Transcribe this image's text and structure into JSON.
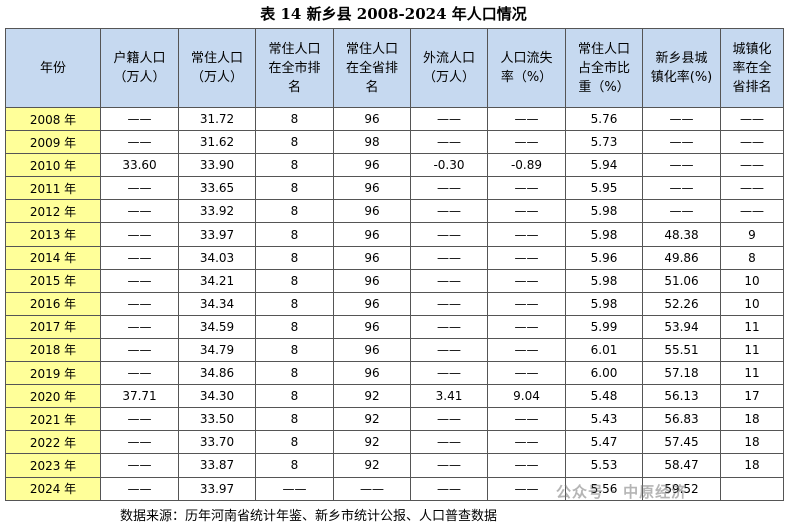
{
  "title": "表 14 新乡县 2008-2024 年人口情况",
  "table": {
    "header": [
      [
        "年份"
      ],
      [
        "户籍人口",
        "（万人）"
      ],
      [
        "常住人口",
        "（万人）"
      ],
      [
        "常住人口",
        "在全市排",
        "名"
      ],
      [
        "常住人口",
        "在全省排",
        "名"
      ],
      [
        "外流人口",
        "（万人）"
      ],
      [
        "人口流失",
        "率（%）"
      ],
      [
        "常住人口",
        "占全市比",
        "重（%）"
      ],
      [
        "新乡县城",
        "镇化率(%)"
      ],
      [
        "城镇化",
        "率在全",
        "省排名"
      ]
    ],
    "rows": [
      [
        "2008 年",
        "——",
        "31.72",
        "8",
        "96",
        "——",
        "——",
        "5.76",
        "——",
        "——"
      ],
      [
        "2009 年",
        "——",
        "31.62",
        "8",
        "98",
        "——",
        "——",
        "5.73",
        "——",
        "——"
      ],
      [
        "2010 年",
        "33.60",
        "33.90",
        "8",
        "96",
        "-0.30",
        "-0.89",
        "5.94",
        "——",
        "——"
      ],
      [
        "2011 年",
        "——",
        "33.65",
        "8",
        "96",
        "——",
        "——",
        "5.95",
        "——",
        "——"
      ],
      [
        "2012 年",
        "——",
        "33.92",
        "8",
        "96",
        "——",
        "——",
        "5.98",
        "——",
        "——"
      ],
      [
        "2013 年",
        "——",
        "33.97",
        "8",
        "96",
        "——",
        "——",
        "5.98",
        "48.38",
        "9"
      ],
      [
        "2014 年",
        "——",
        "34.03",
        "8",
        "96",
        "——",
        "——",
        "5.96",
        "49.86",
        "8"
      ],
      [
        "2015 年",
        "——",
        "34.21",
        "8",
        "96",
        "——",
        "——",
        "5.98",
        "51.06",
        "10"
      ],
      [
        "2016 年",
        "——",
        "34.34",
        "8",
        "96",
        "——",
        "——",
        "5.98",
        "52.26",
        "10"
      ],
      [
        "2017 年",
        "——",
        "34.59",
        "8",
        "96",
        "——",
        "——",
        "5.99",
        "53.94",
        "11"
      ],
      [
        "2018 年",
        "——",
        "34.79",
        "8",
        "96",
        "——",
        "——",
        "6.01",
        "55.51",
        "11"
      ],
      [
        "2019 年",
        "——",
        "34.86",
        "8",
        "96",
        "——",
        "——",
        "6.00",
        "57.18",
        "11"
      ],
      [
        "2020 年",
        "37.71",
        "34.30",
        "8",
        "92",
        "3.41",
        "9.04",
        "5.48",
        "56.13",
        "17"
      ],
      [
        "2021 年",
        "——",
        "33.50",
        "8",
        "92",
        "——",
        "——",
        "5.43",
        "56.83",
        "18"
      ],
      [
        "2022 年",
        "——",
        "33.70",
        "8",
        "92",
        "——",
        "——",
        "5.47",
        "57.45",
        "18"
      ],
      [
        "2023 年",
        "——",
        "33.87",
        "8",
        "92",
        "——",
        "——",
        "5.53",
        "58.47",
        "18"
      ],
      [
        "2024 年",
        "——",
        "33.97",
        "——",
        "——",
        "——",
        "——",
        "5.56",
        "59.52",
        null
      ]
    ]
  },
  "source": "数据来源：历年河南省统计年鉴、新乡市统计公报、人口普查数据",
  "watermark": "公众号 · 中原经济"
}
